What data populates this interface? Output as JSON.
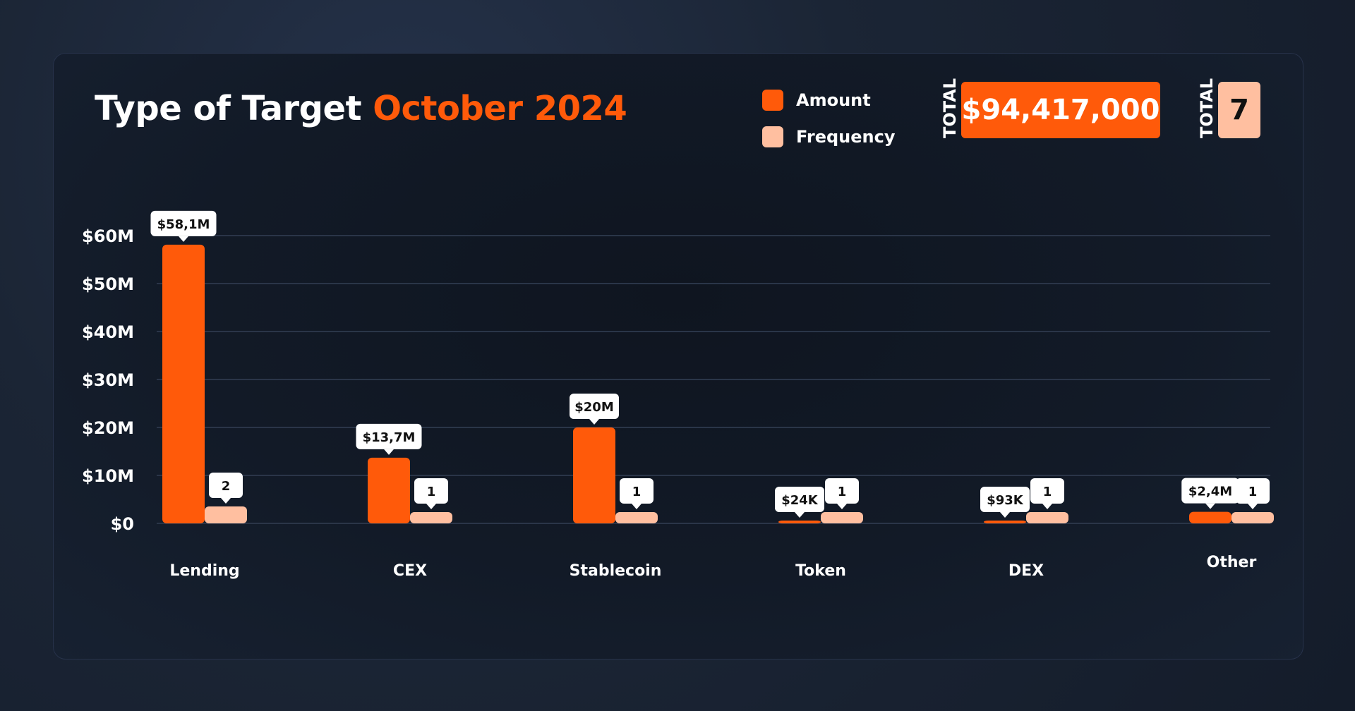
{
  "header": {
    "title_main": "Type of Target",
    "title_accent": "October 2024"
  },
  "legend": [
    {
      "label": "Amount",
      "color": "#ff5a0a"
    },
    {
      "label": "Frequency",
      "color": "#ffbfa0"
    }
  ],
  "totals": {
    "amount_label": "TOTAL",
    "amount_value": "$94,417,000",
    "frequency_label": "TOTAL",
    "frequency_value": "7"
  },
  "chart_data": {
    "type": "bar",
    "categories": [
      "Lending",
      "CEX",
      "Stablecoin",
      "Token",
      "DEX",
      "Other"
    ],
    "series": [
      {
        "name": "Amount",
        "color": "#ff5a0a",
        "values": [
          58100000,
          13700000,
          20000000,
          24000,
          93000,
          2400000
        ],
        "labels": [
          "$58,1M",
          "$13,7M",
          "$20M",
          "$24K",
          "$93K",
          "$2,4M"
        ]
      },
      {
        "name": "Frequency",
        "color": "#ffbfa0",
        "values": [
          2,
          1,
          1,
          1,
          1,
          1
        ],
        "labels": [
          "2",
          "1",
          "1",
          "1",
          "1",
          "1"
        ]
      }
    ],
    "yticks": [
      "$0",
      "$10M",
      "$20M",
      "$30M",
      "$40M",
      "$50M",
      "$60M"
    ],
    "ylim": [
      0,
      60000000
    ],
    "grid": true,
    "legend": "top-right"
  }
}
